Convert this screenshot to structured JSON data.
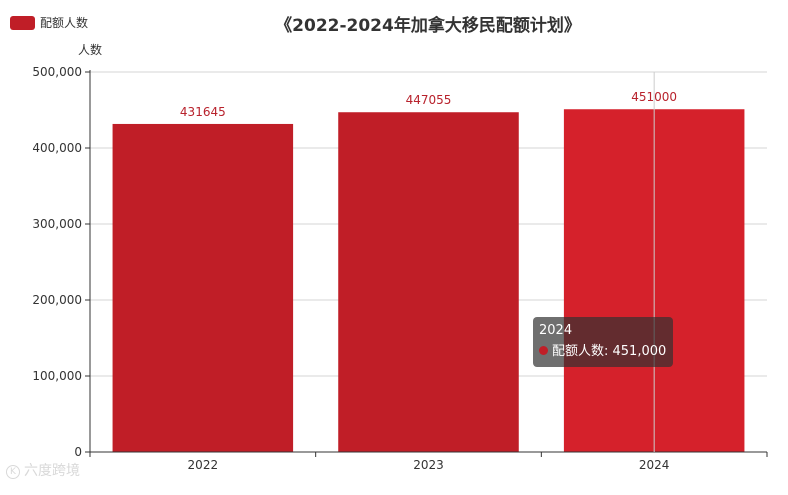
{
  "chart_data": {
    "type": "bar",
    "title": "《2022-2024年加拿大移民配额计划》",
    "ylabel": "人数",
    "xlabel": "",
    "categories": [
      "2022",
      "2023",
      "2024"
    ],
    "series": [
      {
        "name": "配额人数",
        "values": [
          431645,
          447055,
          451000
        ],
        "data_labels": [
          "431645",
          "447055",
          "451000"
        ],
        "color": "#c01e27"
      }
    ],
    "ylim": [
      0,
      500000
    ],
    "yticks": [
      0,
      100000,
      200000,
      300000,
      400000,
      500000
    ],
    "ytick_labels": [
      "0",
      "100,000",
      "200,000",
      "300,000",
      "400,000",
      "500,000"
    ],
    "grid": true,
    "legend": "top-left",
    "highlight_index": 2,
    "highlight_color": "#d5212b",
    "label_color": "#b8222c"
  },
  "tooltip": {
    "title": "2024",
    "series_name": "配额人数",
    "value": "451,000",
    "text": "配额人数: 451,000"
  },
  "watermark": {
    "mark": "K",
    "text": "六度跨境"
  }
}
